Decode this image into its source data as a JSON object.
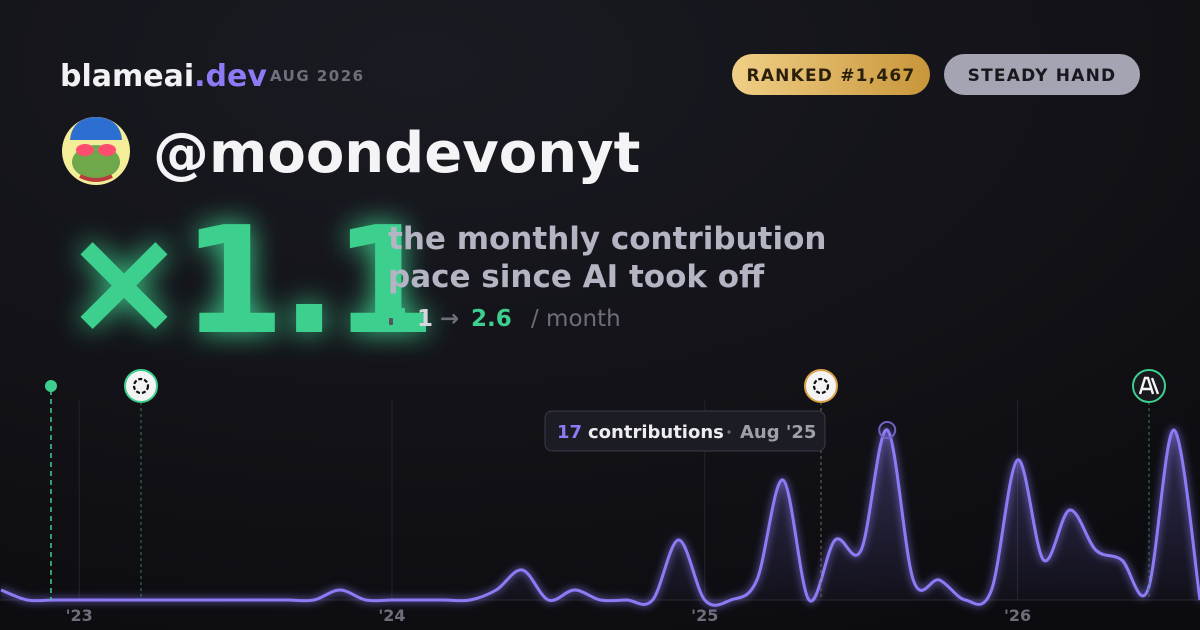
{
  "brand": {
    "name": "blameai",
    "tld": ".dev",
    "date": "AUG 2026"
  },
  "badges": [
    "RANKED #1,467",
    "STEADY HAND"
  ],
  "handle": "@moondevonyt",
  "multiplier": "×1.1",
  "caption": [
    "the monthly contribution",
    "pace since AI took off"
  ],
  "pace": {
    "from": 1,
    "arrow": "→",
    "to": 2.6,
    "unit": "/ month"
  },
  "chart_data": {
    "type": "line",
    "categories": [
      null,
      null,
      null,
      "'23",
      null,
      null,
      null,
      null,
      null,
      null,
      null,
      null,
      null,
      null,
      null,
      "'24",
      null,
      null,
      null,
      null,
      null,
      null,
      null,
      null,
      null,
      null,
      null,
      "'25",
      null,
      null,
      null,
      null,
      null,
      null,
      null,
      null,
      null,
      null,
      null,
      "'26",
      null,
      null,
      null,
      null,
      null,
      null,
      null
    ],
    "series": [
      {
        "color": "#8b7cf6",
        "values": [
          1,
          0,
          0,
          0,
          0,
          0,
          0,
          0,
          0,
          0,
          0,
          0,
          0,
          1,
          0,
          0,
          0,
          0,
          0,
          1,
          3,
          0,
          1,
          0,
          0,
          0,
          6,
          0,
          0,
          2,
          12,
          0,
          6,
          5,
          17,
          2,
          2,
          0,
          1,
          14,
          4,
          9,
          5,
          4,
          1,
          17,
          0
        ]
      }
    ],
    "tooltip": {
      "value": 17,
      "label": "contributions",
      "date": "Aug '25"
    }
  }
}
